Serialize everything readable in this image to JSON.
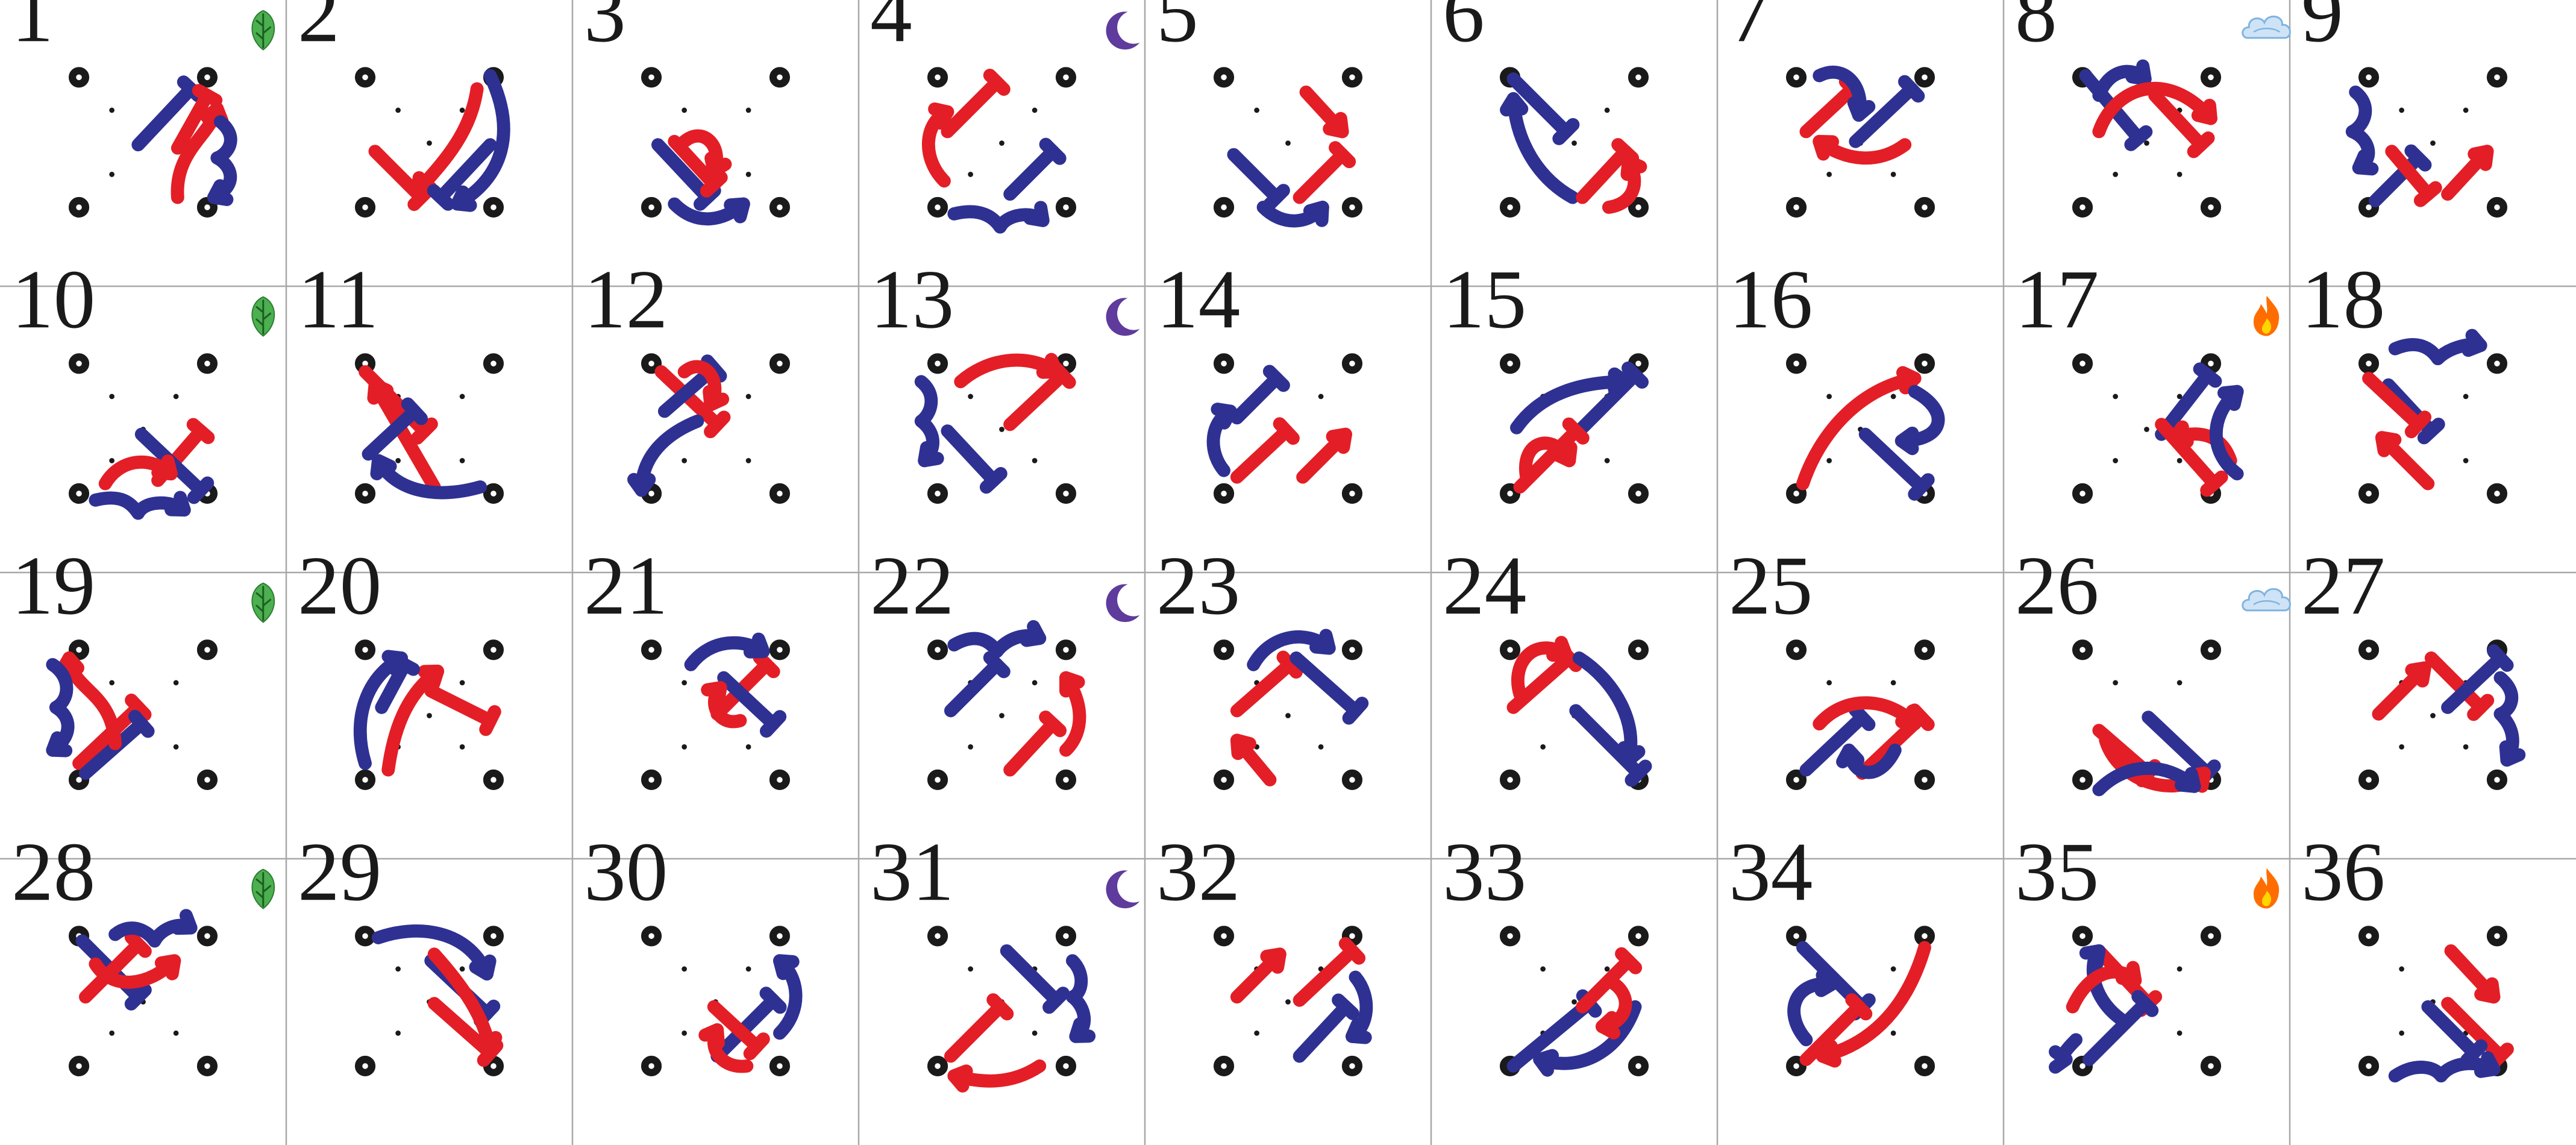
{
  "grid": {
    "columns": 9,
    "rows": 4
  },
  "colors": {
    "red": "#e41e26",
    "blue": "#2e3192",
    "leaf": "#4caf50",
    "moon": "#5e3b9c",
    "cloud": "#7fb3e0",
    "fire": "#ff6d00"
  },
  "panels": [
    {
      "number": "1",
      "badge": "leaf-icon"
    },
    {
      "number": "2",
      "badge": ""
    },
    {
      "number": "3",
      "badge": ""
    },
    {
      "number": "4",
      "badge": "moon-icon"
    },
    {
      "number": "5",
      "badge": ""
    },
    {
      "number": "6",
      "badge": ""
    },
    {
      "number": "7",
      "badge": ""
    },
    {
      "number": "8",
      "badge": "cloud-icon"
    },
    {
      "number": "9",
      "badge": ""
    },
    {
      "number": "10",
      "badge": "leaf-icon"
    },
    {
      "number": "11",
      "badge": ""
    },
    {
      "number": "12",
      "badge": ""
    },
    {
      "number": "13",
      "badge": "moon-icon"
    },
    {
      "number": "14",
      "badge": ""
    },
    {
      "number": "15",
      "badge": ""
    },
    {
      "number": "16",
      "badge": ""
    },
    {
      "number": "17",
      "badge": "fire-icon"
    },
    {
      "number": "18",
      "badge": ""
    },
    {
      "number": "19",
      "badge": "leaf-icon"
    },
    {
      "number": "20",
      "badge": ""
    },
    {
      "number": "21",
      "badge": ""
    },
    {
      "number": "22",
      "badge": "moon-icon"
    },
    {
      "number": "23",
      "badge": ""
    },
    {
      "number": "24",
      "badge": ""
    },
    {
      "number": "25",
      "badge": ""
    },
    {
      "number": "26",
      "badge": "cloud-icon"
    },
    {
      "number": "27",
      "badge": ""
    },
    {
      "number": "28",
      "badge": "leaf-icon"
    },
    {
      "number": "29",
      "badge": ""
    },
    {
      "number": "30",
      "badge": ""
    },
    {
      "number": "31",
      "badge": "moon-icon"
    },
    {
      "number": "32",
      "badge": ""
    },
    {
      "number": "33",
      "badge": ""
    },
    {
      "number": "34",
      "badge": ""
    },
    {
      "number": "35",
      "badge": "fire-icon"
    },
    {
      "number": "36",
      "badge": ""
    }
  ]
}
